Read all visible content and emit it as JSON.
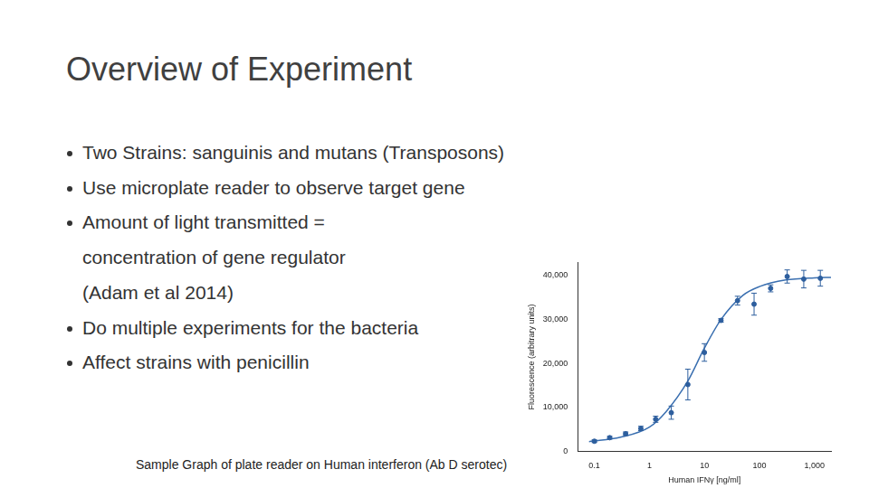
{
  "title": "Overview of Experiment",
  "bullets": [
    [
      "Two Strains: sanguinis and mutans (Transposons)"
    ],
    [
      "Use microplate reader to observe target gene"
    ],
    [
      "Amount of light transmitted =",
      "concentration of gene regulator",
      "(Adam et al 2014)"
    ],
    [
      "Do multiple experiments for the bacteria"
    ],
    [
      "Affect strains with penicillin"
    ]
  ],
  "caption": "Sample Graph of plate reader on Human interferon (Ab D serotec)",
  "chart_data": {
    "type": "scatter",
    "x_label": "Human IFNγ [ng/ml]",
    "y_label": "Fluorescence (arbitrary units)",
    "log": "x",
    "grid": false,
    "xlim": [
      0.05,
      2000
    ],
    "ylim": [
      0,
      43000
    ],
    "xticks": [
      0.1,
      1,
      10,
      100,
      {
        "value": 1000,
        "label": "1,000"
      }
    ],
    "yticks": [
      0,
      {
        "value": 10000,
        "label": "10,000"
      },
      {
        "value": 20000,
        "label": "20,000"
      },
      {
        "value": 30000,
        "label": "30,000"
      },
      {
        "value": 40000,
        "label": "40,000"
      }
    ],
    "series": [
      {
        "type": "scatter",
        "marker": "circle",
        "color": "#2e5f9e",
        "x": [
          0.1,
          0.19,
          0.37,
          0.7,
          1.3,
          2.5,
          5,
          10,
          20,
          40,
          80,
          160,
          320,
          640,
          1280
        ],
        "values": [
          2300,
          3100,
          4000,
          5200,
          7300,
          8800,
          15200,
          22500,
          29800,
          34300,
          33500,
          37100,
          39800,
          39200,
          39400
        ],
        "errors": [
          300,
          300,
          400,
          500,
          700,
          1500,
          3500,
          2000,
          400,
          1000,
          2500,
          800,
          1500,
          2000,
          1800
        ]
      },
      {
        "type": "line",
        "line_style": "solid",
        "color": "#3a6fb0",
        "x": [
          0.08,
          0.3,
          1,
          2,
          5,
          10,
          20,
          50,
          100,
          300,
          1000,
          2000
        ],
        "values": [
          2200,
          3200,
          5500,
          9000,
          16000,
          23500,
          30000,
          35500,
          37500,
          39000,
          39500,
          39600
        ]
      }
    ]
  }
}
